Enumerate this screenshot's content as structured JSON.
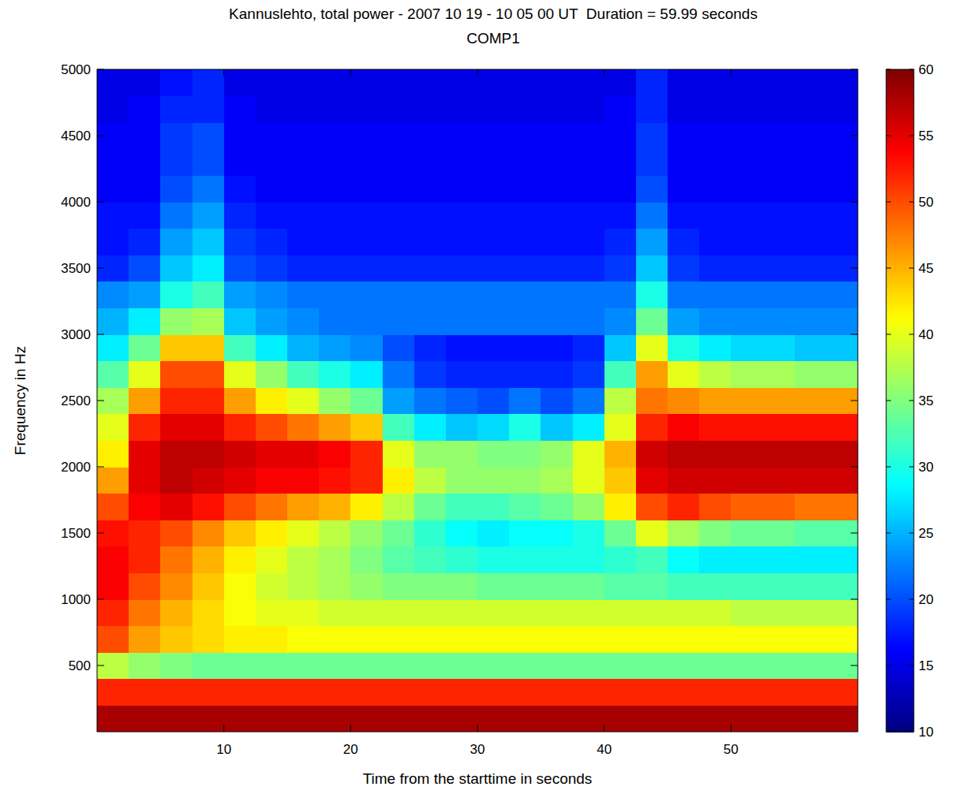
{
  "chart_data": {
    "type": "heatmap",
    "title": "Kannuslehto, total power - 2007 10 19 - 10 05 00 UT  Duration = 59.99 seconds",
    "subtitle": "COMP1",
    "x_label": "Time from the starttime in seconds",
    "y_label": "Frequency in Hz",
    "xlim": [
      0,
      60
    ],
    "ylim": [
      0,
      5000
    ],
    "xticks": [
      10,
      20,
      30,
      40,
      50
    ],
    "yticks": [
      500,
      1000,
      1500,
      2000,
      2500,
      3000,
      3500,
      4000,
      4500,
      5000
    ],
    "x": [
      1.25,
      3.75,
      6.25,
      8.75,
      11.25,
      13.75,
      16.25,
      18.75,
      21.25,
      23.75,
      26.25,
      28.75,
      31.25,
      33.75,
      36.25,
      38.75,
      41.25,
      43.75,
      46.25,
      48.75,
      51.25,
      53.75,
      56.25,
      58.75
    ],
    "y": [
      100,
      300,
      500,
      700,
      900,
      1100,
      1300,
      1500,
      1700,
      1900,
      2100,
      2300,
      2500,
      2700,
      2900,
      3100,
      3300,
      3500,
      3700,
      3900,
      4100,
      4300,
      4500,
      4700,
      4900
    ],
    "cells": [
      [
        58,
        58,
        58,
        58,
        58,
        58,
        58,
        58,
        58,
        58,
        58,
        58,
        58,
        58,
        58,
        58,
        58,
        58,
        58,
        58,
        58,
        58,
        58,
        58
      ],
      [
        52,
        52,
        52,
        52,
        52,
        52,
        52,
        52,
        52,
        52,
        52,
        52,
        52,
        52,
        52,
        52,
        52,
        52,
        52,
        52,
        52,
        52,
        52,
        52
      ],
      [
        38,
        36,
        35,
        34,
        34,
        34,
        34,
        34,
        34,
        34,
        34,
        34,
        34,
        34,
        34,
        34,
        34,
        34,
        34,
        34,
        34,
        34,
        34,
        34
      ],
      [
        50,
        46,
        44,
        43,
        42,
        42,
        41,
        41,
        41,
        41,
        41,
        41,
        41,
        41,
        41,
        41,
        41,
        41,
        41,
        41,
        41,
        41,
        41,
        41
      ],
      [
        52,
        48,
        45,
        43,
        41,
        40,
        40,
        39,
        39,
        39,
        39,
        39,
        39,
        39,
        39,
        39,
        39,
        39,
        39,
        39,
        38,
        38,
        38,
        38
      ],
      [
        54,
        50,
        47,
        44,
        41,
        39,
        38,
        37,
        36,
        35,
        35,
        35,
        34,
        34,
        34,
        34,
        33,
        33,
        32,
        32,
        32,
        32,
        32,
        32
      ],
      [
        54,
        52,
        48,
        45,
        42,
        40,
        38,
        37,
        35,
        33,
        32,
        31,
        30,
        30,
        30,
        30,
        31,
        32,
        29,
        28,
        28,
        28,
        28,
        28
      ],
      [
        53,
        52,
        50,
        47,
        44,
        42,
        40,
        38,
        36,
        34,
        31,
        29,
        28,
        29,
        29,
        30,
        34,
        40,
        37,
        35,
        34,
        34,
        33,
        33
      ],
      [
        50,
        54,
        55,
        53,
        50,
        48,
        46,
        45,
        42,
        38,
        34,
        32,
        32,
        33,
        34,
        36,
        42,
        50,
        52,
        50,
        49,
        49,
        48,
        48
      ],
      [
        46,
        55,
        57,
        56,
        55,
        54,
        54,
        53,
        52,
        42,
        38,
        36,
        36,
        36,
        37,
        40,
        44,
        55,
        56,
        56,
        56,
        56,
        56,
        56
      ],
      [
        42,
        55,
        57,
        57,
        56,
        55,
        55,
        54,
        52,
        40,
        36,
        36,
        35,
        35,
        36,
        40,
        45,
        56,
        57,
        57,
        57,
        57,
        57,
        57
      ],
      [
        40,
        52,
        55,
        55,
        52,
        50,
        48,
        46,
        44,
        32,
        28,
        26,
        27,
        30,
        26,
        28,
        40,
        52,
        54,
        53,
        53,
        53,
        53,
        53
      ],
      [
        37,
        46,
        52,
        52,
        46,
        42,
        40,
        36,
        34,
        24,
        22,
        21,
        20,
        22,
        20,
        22,
        38,
        48,
        47,
        46,
        46,
        46,
        46,
        46
      ],
      [
        33,
        40,
        50,
        50,
        40,
        36,
        32,
        30,
        28,
        22,
        19,
        18,
        18,
        18,
        18,
        19,
        32,
        46,
        40,
        38,
        37,
        37,
        36,
        36
      ],
      [
        28,
        34,
        44,
        44,
        32,
        28,
        25,
        24,
        23,
        20,
        18,
        17,
        17,
        17,
        17,
        18,
        26,
        40,
        30,
        28,
        27,
        27,
        26,
        26
      ],
      [
        25,
        28,
        36,
        37,
        26,
        24,
        23,
        22,
        22,
        22,
        22,
        22,
        22,
        22,
        22,
        22,
        23,
        34,
        24,
        23,
        23,
        23,
        23,
        23
      ],
      [
        23,
        24,
        30,
        32,
        24,
        23,
        22,
        22,
        22,
        22,
        22,
        22,
        22,
        22,
        22,
        22,
        22,
        30,
        22,
        22,
        22,
        22,
        22,
        22
      ],
      [
        18,
        20,
        26,
        28,
        20,
        19,
        18,
        18,
        18,
        18,
        18,
        18,
        18,
        18,
        18,
        18,
        19,
        26,
        19,
        18,
        18,
        18,
        18,
        18
      ],
      [
        17,
        18,
        24,
        26,
        19,
        18,
        17,
        17,
        17,
        17,
        17,
        17,
        17,
        17,
        17,
        17,
        18,
        24,
        18,
        17,
        17,
        17,
        17,
        17
      ],
      [
        17,
        17,
        22,
        24,
        18,
        17,
        17,
        17,
        17,
        17,
        17,
        17,
        17,
        17,
        17,
        17,
        17,
        22,
        17,
        17,
        17,
        17,
        17,
        17
      ],
      [
        16,
        16,
        20,
        22,
        17,
        16,
        16,
        16,
        16,
        16,
        16,
        16,
        16,
        16,
        16,
        16,
        16,
        20,
        16,
        16,
        16,
        16,
        16,
        16
      ],
      [
        16,
        16,
        19,
        20,
        16,
        16,
        16,
        16,
        16,
        16,
        16,
        16,
        16,
        16,
        16,
        16,
        16,
        19,
        16,
        16,
        16,
        16,
        16,
        16
      ],
      [
        16,
        16,
        19,
        20,
        16,
        16,
        16,
        16,
        16,
        16,
        16,
        16,
        16,
        16,
        16,
        16,
        16,
        19,
        16,
        16,
        16,
        16,
        16,
        16
      ],
      [
        15,
        16,
        18,
        18,
        16,
        15,
        15,
        15,
        15,
        15,
        15,
        15,
        15,
        15,
        15,
        15,
        16,
        18,
        15,
        15,
        15,
        15,
        15,
        15
      ],
      [
        15,
        15,
        17,
        18,
        15,
        15,
        15,
        15,
        15,
        15,
        15,
        15,
        15,
        15,
        15,
        15,
        15,
        18,
        15,
        15,
        15,
        15,
        15,
        15
      ]
    ],
    "colorbar": {
      "range": [
        10,
        60
      ],
      "ticks": [
        10,
        15,
        20,
        25,
        30,
        35,
        40,
        45,
        50,
        55,
        60
      ]
    }
  }
}
